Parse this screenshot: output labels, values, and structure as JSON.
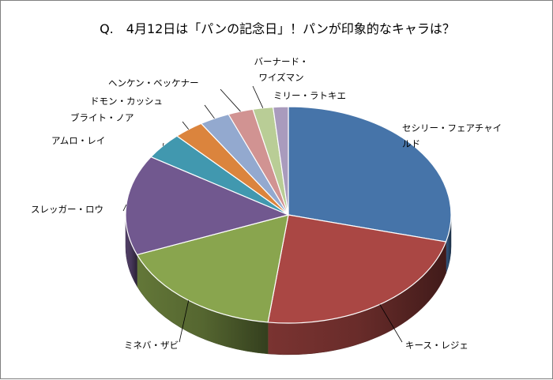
{
  "chart_data": {
    "type": "pie",
    "title": "Q.　4月12日は「パンの記念日」！パンが印象的なキャラは？",
    "categories": [
      "セシリー・フェアチャイルド",
      "キース・レジェ",
      "ミネバ・ザビ",
      "スレッガー・ロウ",
      "アムロ・レイ",
      "ブライト・ノア",
      "ドモン・カッシュ",
      "ヘンケン・ベッケナー",
      "バーナード・ワイズマン",
      "ミリー・ラトキエ"
    ],
    "label_lines": [
      [
        "セシリー・フェアチャイ",
        "ルド"
      ],
      [
        "キース・レジェ"
      ],
      [
        "ミネバ・ザビ"
      ],
      [
        "スレッガー・ロウ"
      ],
      [
        "アムロ・レイ"
      ],
      [
        "ブライト・ノア"
      ],
      [
        "ドモン・カッシュ"
      ],
      [
        "ヘンケン・ベッケナー"
      ],
      [
        "バーナード・",
        "ワイズマン"
      ],
      [
        "ミリー・ラトキエ"
      ]
    ],
    "values": [
      29,
      23,
      17,
      15,
      4,
      3,
      3,
      2.5,
      2,
      1.5
    ],
    "colors": [
      "#4674a9",
      "#aa4744",
      "#89a54e",
      "#71588f",
      "#4198af",
      "#db843d",
      "#93a9cf",
      "#d19392",
      "#b9cd96",
      "#a99bbd"
    ],
    "start_angle_deg": 270,
    "direction": "clockwise",
    "style": "3d",
    "legend": "none",
    "data_labels": "category names with leader lines"
  }
}
